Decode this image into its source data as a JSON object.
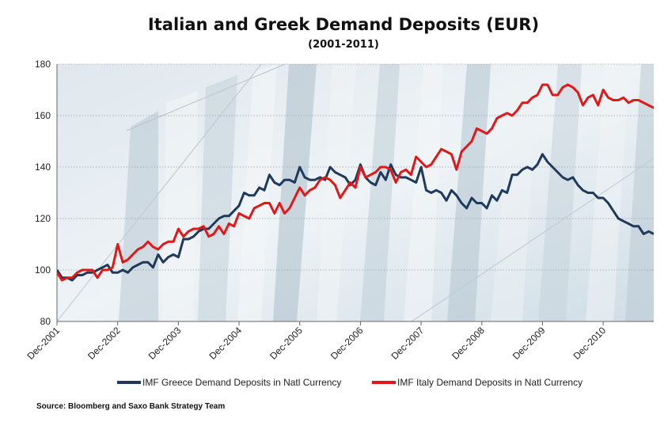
{
  "chart_data": {
    "type": "line",
    "title": "Italian and Greek Demand Deposits (EUR)",
    "subtitle": "(2001-2011)",
    "ylim": [
      80,
      180
    ],
    "yticks": [
      80,
      100,
      120,
      140,
      160,
      180
    ],
    "xlim": [
      0,
      118
    ],
    "xticks": [
      {
        "label": "Dec-2001",
        "x": 0
      },
      {
        "label": "Dec-2002",
        "x": 12
      },
      {
        "label": "Dec-2003",
        "x": 24
      },
      {
        "label": "Dec-2004",
        "x": 36
      },
      {
        "label": "Dec-2005",
        "x": 48
      },
      {
        "label": "Dec-2006",
        "x": 60
      },
      {
        "label": "Dec-2007",
        "x": 72
      },
      {
        "label": "Dec-2008",
        "x": 84
      },
      {
        "label": "Dec-2009",
        "x": 96
      },
      {
        "label": "Dec-2010",
        "x": 108
      }
    ],
    "grid": true,
    "legend_position": "bottom",
    "series": [
      {
        "name": "IMF Greece Demand Deposits in Natl Currency",
        "color": "#1f3a5a",
        "points": [
          [
            0,
            100
          ],
          [
            1,
            97
          ],
          [
            2,
            97
          ],
          [
            3,
            96
          ],
          [
            4,
            98
          ],
          [
            5,
            98
          ],
          [
            6,
            99
          ],
          [
            7,
            99
          ],
          [
            8,
            100
          ],
          [
            9,
            101
          ],
          [
            10,
            102
          ],
          [
            11,
            99
          ],
          [
            12,
            99
          ],
          [
            13,
            100
          ],
          [
            14,
            99
          ],
          [
            15,
            101
          ],
          [
            16,
            102
          ],
          [
            17,
            103
          ],
          [
            18,
            103
          ],
          [
            19,
            101
          ],
          [
            20,
            106
          ],
          [
            21,
            103
          ],
          [
            22,
            105
          ],
          [
            23,
            106
          ],
          [
            24,
            105
          ],
          [
            25,
            112
          ],
          [
            26,
            112
          ],
          [
            27,
            113
          ],
          [
            28,
            115
          ],
          [
            29,
            116
          ],
          [
            30,
            116
          ],
          [
            31,
            118
          ],
          [
            32,
            120
          ],
          [
            33,
            121
          ],
          [
            34,
            121
          ],
          [
            35,
            123
          ],
          [
            36,
            125
          ],
          [
            37,
            130
          ],
          [
            38,
            129
          ],
          [
            39,
            129
          ],
          [
            40,
            132
          ],
          [
            41,
            131
          ],
          [
            42,
            137
          ],
          [
            43,
            134
          ],
          [
            44,
            133
          ],
          [
            45,
            135
          ],
          [
            46,
            135
          ],
          [
            47,
            134
          ],
          [
            48,
            140
          ],
          [
            49,
            136
          ],
          [
            50,
            135
          ],
          [
            51,
            135
          ],
          [
            52,
            136
          ],
          [
            53,
            135
          ],
          [
            54,
            140
          ],
          [
            55,
            138
          ],
          [
            56,
            137
          ],
          [
            57,
            136
          ],
          [
            58,
            133
          ],
          [
            59,
            135
          ],
          [
            60,
            141
          ],
          [
            61,
            136
          ],
          [
            62,
            134
          ],
          [
            63,
            133
          ],
          [
            64,
            138
          ],
          [
            65,
            135
          ],
          [
            66,
            141
          ],
          [
            67,
            137
          ],
          [
            68,
            136
          ],
          [
            69,
            136
          ],
          [
            70,
            135
          ],
          [
            71,
            134
          ],
          [
            72,
            140
          ],
          [
            73,
            131
          ],
          [
            74,
            130
          ],
          [
            75,
            131
          ],
          [
            76,
            130
          ],
          [
            77,
            127
          ],
          [
            78,
            131
          ],
          [
            79,
            129
          ],
          [
            80,
            126
          ],
          [
            81,
            124
          ],
          [
            82,
            128
          ],
          [
            83,
            126
          ],
          [
            84,
            126
          ],
          [
            85,
            124
          ],
          [
            86,
            129
          ],
          [
            87,
            127
          ],
          [
            88,
            131
          ],
          [
            89,
            130
          ],
          [
            90,
            137
          ],
          [
            91,
            137
          ],
          [
            92,
            139
          ],
          [
            93,
            140
          ],
          [
            94,
            139
          ],
          [
            95,
            141
          ],
          [
            96,
            145
          ],
          [
            97,
            142
          ],
          [
            98,
            140
          ],
          [
            99,
            138
          ],
          [
            100,
            136
          ],
          [
            101,
            135
          ],
          [
            102,
            136
          ],
          [
            103,
            133
          ],
          [
            104,
            131
          ],
          [
            105,
            130
          ],
          [
            106,
            130
          ],
          [
            107,
            128
          ],
          [
            108,
            128
          ],
          [
            109,
            126
          ],
          [
            110,
            123
          ],
          [
            111,
            120
          ],
          [
            112,
            119
          ],
          [
            113,
            118
          ],
          [
            114,
            117
          ],
          [
            115,
            117
          ],
          [
            116,
            114
          ],
          [
            117,
            115
          ],
          [
            118,
            114
          ]
        ]
      },
      {
        "name": "IMF Italy Demand Deposits in Natl Currency",
        "color": "#e01818",
        "points": [
          [
            0,
            99
          ],
          [
            1,
            96
          ],
          [
            2,
            97
          ],
          [
            3,
            97
          ],
          [
            4,
            99
          ],
          [
            5,
            100
          ],
          [
            6,
            100
          ],
          [
            7,
            100
          ],
          [
            8,
            97
          ],
          [
            9,
            100
          ],
          [
            10,
            100
          ],
          [
            11,
            101
          ],
          [
            12,
            110
          ],
          [
            13,
            103
          ],
          [
            14,
            104
          ],
          [
            15,
            106
          ],
          [
            16,
            108
          ],
          [
            17,
            109
          ],
          [
            18,
            111
          ],
          [
            19,
            109
          ],
          [
            20,
            108
          ],
          [
            21,
            110
          ],
          [
            22,
            111
          ],
          [
            23,
            111
          ],
          [
            24,
            116
          ],
          [
            25,
            113
          ],
          [
            26,
            115
          ],
          [
            27,
            116
          ],
          [
            28,
            116
          ],
          [
            29,
            117
          ],
          [
            30,
            113
          ],
          [
            31,
            114
          ],
          [
            32,
            117
          ],
          [
            33,
            114
          ],
          [
            34,
            118
          ],
          [
            35,
            117
          ],
          [
            36,
            122
          ],
          [
            37,
            121
          ],
          [
            38,
            120
          ],
          [
            39,
            124
          ],
          [
            40,
            125
          ],
          [
            41,
            126
          ],
          [
            42,
            126
          ],
          [
            43,
            122
          ],
          [
            44,
            126
          ],
          [
            45,
            122
          ],
          [
            46,
            124
          ],
          [
            47,
            128
          ],
          [
            48,
            132
          ],
          [
            49,
            129
          ],
          [
            50,
            131
          ],
          [
            51,
            132
          ],
          [
            52,
            135
          ],
          [
            53,
            136
          ],
          [
            54,
            135
          ],
          [
            55,
            133
          ],
          [
            56,
            128
          ],
          [
            57,
            131
          ],
          [
            58,
            134
          ],
          [
            59,
            132
          ],
          [
            60,
            140
          ],
          [
            61,
            136
          ],
          [
            62,
            137
          ],
          [
            63,
            138
          ],
          [
            64,
            140
          ],
          [
            65,
            140
          ],
          [
            66,
            139
          ],
          [
            67,
            134
          ],
          [
            68,
            138
          ],
          [
            69,
            139
          ],
          [
            70,
            137
          ],
          [
            71,
            144
          ],
          [
            72,
            142
          ],
          [
            73,
            140
          ],
          [
            74,
            141
          ],
          [
            75,
            144
          ],
          [
            76,
            147
          ],
          [
            77,
            146
          ],
          [
            78,
            145
          ],
          [
            79,
            139
          ],
          [
            80,
            146
          ],
          [
            81,
            148
          ],
          [
            82,
            150
          ],
          [
            83,
            155
          ],
          [
            84,
            154
          ],
          [
            85,
            153
          ],
          [
            86,
            155
          ],
          [
            87,
            159
          ],
          [
            88,
            160
          ],
          [
            89,
            161
          ],
          [
            90,
            160
          ],
          [
            91,
            162
          ],
          [
            92,
            165
          ],
          [
            93,
            165
          ],
          [
            94,
            167
          ],
          [
            95,
            168
          ],
          [
            96,
            172
          ],
          [
            97,
            172
          ],
          [
            98,
            168
          ],
          [
            99,
            168
          ],
          [
            100,
            171
          ],
          [
            101,
            172
          ],
          [
            102,
            171
          ],
          [
            103,
            169
          ],
          [
            104,
            164
          ],
          [
            105,
            167
          ],
          [
            106,
            168
          ],
          [
            107,
            164
          ],
          [
            108,
            170
          ],
          [
            109,
            167
          ],
          [
            110,
            166
          ],
          [
            111,
            166
          ],
          [
            112,
            167
          ],
          [
            113,
            165
          ],
          [
            114,
            166
          ],
          [
            115,
            166
          ],
          [
            116,
            165
          ],
          [
            117,
            164
          ],
          [
            118,
            163
          ]
        ]
      }
    ],
    "source": "Source: Bloomberg and Saxo Bank Strategy Team"
  }
}
